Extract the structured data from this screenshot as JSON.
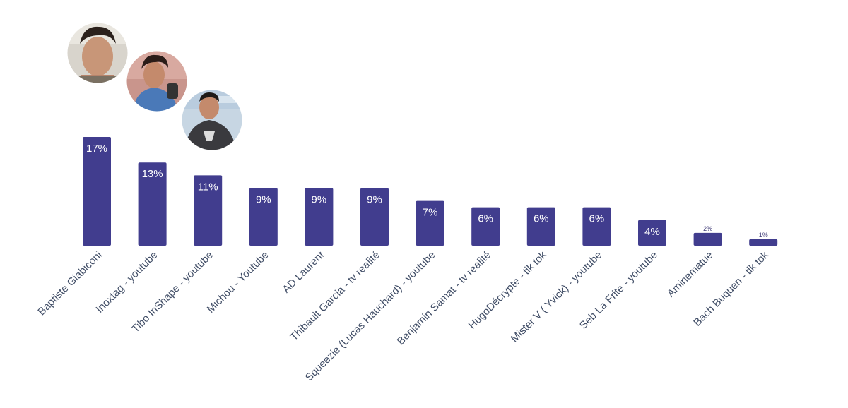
{
  "chart_data": {
    "type": "bar",
    "categories": [
      "Baptiste Giabiconi",
      "Inoxtag - youtube",
      "Tibo InShape - youtube",
      "Michou - Youtube",
      "AD Laurent",
      "Thibault Garcia - tv realité",
      "Squeezie (Lucas Hauchard) - youtube",
      "Benjamin Samat - tv realité",
      "HugoDécrypte - tik tok",
      "Mister V ( Yvick) - youtube",
      "Seb La Frite - youtube",
      "Aminematue",
      "Bach Buquen - tik tok"
    ],
    "values": [
      17,
      13,
      11,
      9,
      9,
      9,
      7,
      6,
      6,
      6,
      4,
      2,
      1
    ],
    "value_labels": [
      "17%",
      "13%",
      "11%",
      "9%",
      "9%",
      "9%",
      "7%",
      "6%",
      "6%",
      "6%",
      "4%",
      "2%",
      "1%"
    ],
    "title": "",
    "xlabel": "",
    "ylabel": "",
    "ylim": [
      0,
      17
    ],
    "grid": false,
    "colors": {
      "bar": "#413d8e",
      "axis_text": "#404d66",
      "bar_text": "#ffffff"
    },
    "photos": [
      {
        "person": "Baptiste Giabiconi",
        "icon": "portrait-photo"
      },
      {
        "person": "Inoxtag",
        "icon": "portrait-photo"
      },
      {
        "person": "Tibo InShape",
        "icon": "portrait-photo"
      }
    ]
  }
}
